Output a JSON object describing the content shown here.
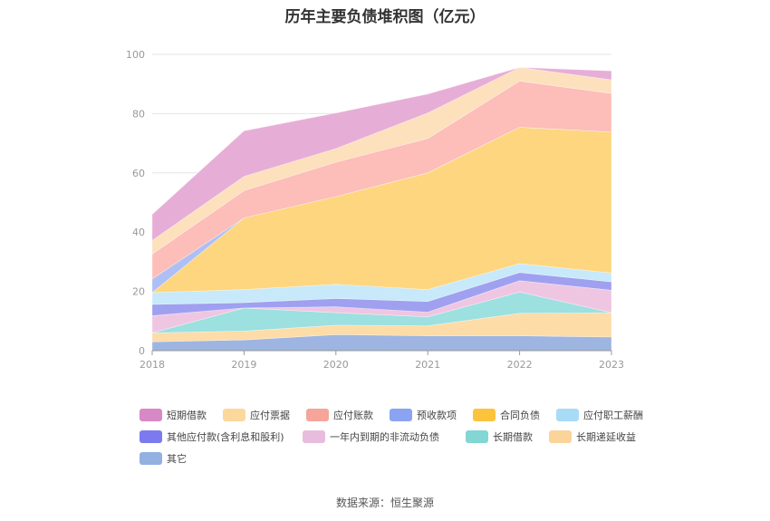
{
  "title": "历年主要负债堆积图（亿元）",
  "source": "数据来源：恒生聚源",
  "chart_data": {
    "type": "area",
    "stacked": true,
    "x": [
      "2018",
      "2019",
      "2020",
      "2021",
      "2022",
      "2023"
    ],
    "ylim": [
      0,
      100
    ],
    "yticks": [
      0,
      20,
      40,
      60,
      80,
      100
    ],
    "grid": true,
    "legend_position": "bottom",
    "series": [
      {
        "name": "其它",
        "color": "#9db5e0",
        "values": [
          3.0,
          3.6,
          5.4,
          5.0,
          5.0,
          4.6
        ]
      },
      {
        "name": "长期递延收益",
        "color": "#fddca8",
        "values": [
          3.0,
          3.0,
          3.2,
          3.4,
          7.6,
          8.2
        ]
      },
      {
        "name": "长期借款",
        "color": "#9ce0e0",
        "values": [
          0.0,
          7.8,
          4.2,
          3.0,
          7.2,
          0.0
        ]
      },
      {
        "name": "一年内到期的非流动负债",
        "color": "#efc6e2",
        "values": [
          5.8,
          0.0,
          2.0,
          1.6,
          3.8,
          7.6
        ]
      },
      {
        "name": "其他应付款(含利息和股利)",
        "color": "#a0a0f0",
        "values": [
          3.8,
          1.8,
          2.8,
          3.6,
          2.8,
          2.8
        ]
      },
      {
        "name": "应付职工薪酬",
        "color": "#c7e9fa",
        "values": [
          4.0,
          4.4,
          4.8,
          4.0,
          3.0,
          3.0
        ]
      },
      {
        "name": "合同负债",
        "color": "#fdd67f",
        "values": [
          0.0,
          24.2,
          29.6,
          39.4,
          46.0,
          47.6
        ]
      },
      {
        "name": "预收款项",
        "color": "#adbff5",
        "values": [
          4.6,
          0.0,
          0.0,
          0.0,
          0.0,
          0.0
        ]
      },
      {
        "name": "应付账款",
        "color": "#fdbdb8",
        "values": [
          8.4,
          9.2,
          11.6,
          11.6,
          15.6,
          13.0
        ]
      },
      {
        "name": "应付票据",
        "color": "#fde0bc",
        "values": [
          4.6,
          4.8,
          4.6,
          8.6,
          4.6,
          4.6
        ]
      },
      {
        "name": "短期借款",
        "color": "#e6aed6",
        "values": [
          8.8,
          15.4,
          12.0,
          6.4,
          0.0,
          3.0
        ]
      }
    ]
  },
  "legend": [
    {
      "label": "短期借款",
      "color": "#d988c6"
    },
    {
      "label": "应付票据",
      "color": "#fcd89c"
    },
    {
      "label": "应付账款",
      "color": "#f6a59a"
    },
    {
      "label": "预收款项",
      "color": "#8aa4f2"
    },
    {
      "label": "合同负债",
      "color": "#fbc43c"
    },
    {
      "label": "应付职工薪酬",
      "color": "#a8dcf6"
    },
    {
      "label": "其他应付款(含利息和股利)",
      "color": "#7b7bef"
    },
    {
      "label": "一年内到期的非流动负债",
      "color": "#e8bcdc"
    },
    {
      "label": "长期借款",
      "color": "#82d6d4"
    },
    {
      "label": "长期递延收益",
      "color": "#fbd49a"
    },
    {
      "label": "其它",
      "color": "#92b0e0"
    }
  ]
}
